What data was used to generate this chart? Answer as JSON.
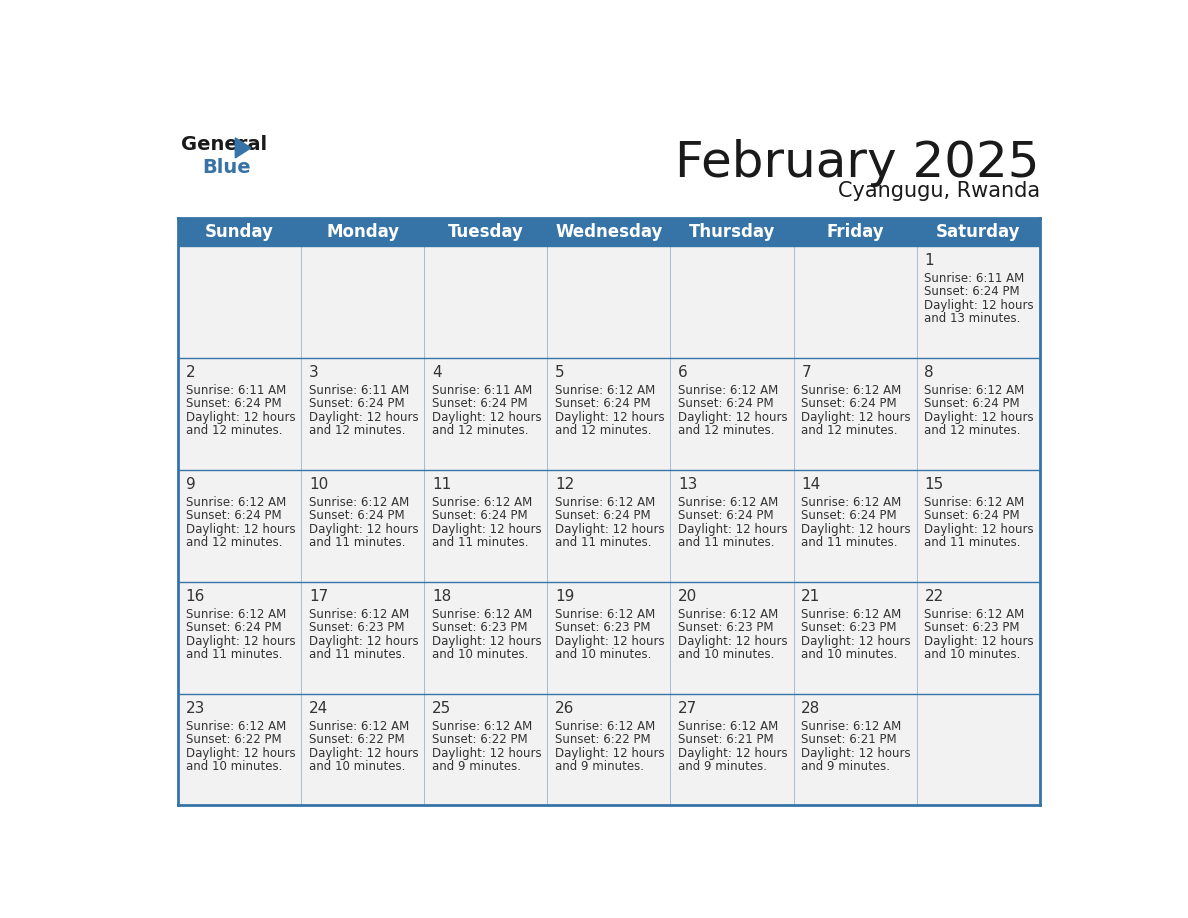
{
  "title": "February 2025",
  "subtitle": "Cyangugu, Rwanda",
  "header_bg": "#3674a8",
  "header_text_color": "#ffffff",
  "cell_bg": "#f2f2f2",
  "border_color": "#3674a8",
  "day_headers": [
    "Sunday",
    "Monday",
    "Tuesday",
    "Wednesday",
    "Thursday",
    "Friday",
    "Saturday"
  ],
  "days": [
    {
      "day": 1,
      "col": 6,
      "row": 0,
      "sunrise": "6:11 AM",
      "sunset": "6:24 PM",
      "daylight_hours": 12,
      "daylight_minutes": 13
    },
    {
      "day": 2,
      "col": 0,
      "row": 1,
      "sunrise": "6:11 AM",
      "sunset": "6:24 PM",
      "daylight_hours": 12,
      "daylight_minutes": 12
    },
    {
      "day": 3,
      "col": 1,
      "row": 1,
      "sunrise": "6:11 AM",
      "sunset": "6:24 PM",
      "daylight_hours": 12,
      "daylight_minutes": 12
    },
    {
      "day": 4,
      "col": 2,
      "row": 1,
      "sunrise": "6:11 AM",
      "sunset": "6:24 PM",
      "daylight_hours": 12,
      "daylight_minutes": 12
    },
    {
      "day": 5,
      "col": 3,
      "row": 1,
      "sunrise": "6:12 AM",
      "sunset": "6:24 PM",
      "daylight_hours": 12,
      "daylight_minutes": 12
    },
    {
      "day": 6,
      "col": 4,
      "row": 1,
      "sunrise": "6:12 AM",
      "sunset": "6:24 PM",
      "daylight_hours": 12,
      "daylight_minutes": 12
    },
    {
      "day": 7,
      "col": 5,
      "row": 1,
      "sunrise": "6:12 AM",
      "sunset": "6:24 PM",
      "daylight_hours": 12,
      "daylight_minutes": 12
    },
    {
      "day": 8,
      "col": 6,
      "row": 1,
      "sunrise": "6:12 AM",
      "sunset": "6:24 PM",
      "daylight_hours": 12,
      "daylight_minutes": 12
    },
    {
      "day": 9,
      "col": 0,
      "row": 2,
      "sunrise": "6:12 AM",
      "sunset": "6:24 PM",
      "daylight_hours": 12,
      "daylight_minutes": 12
    },
    {
      "day": 10,
      "col": 1,
      "row": 2,
      "sunrise": "6:12 AM",
      "sunset": "6:24 PM",
      "daylight_hours": 12,
      "daylight_minutes": 11
    },
    {
      "day": 11,
      "col": 2,
      "row": 2,
      "sunrise": "6:12 AM",
      "sunset": "6:24 PM",
      "daylight_hours": 12,
      "daylight_minutes": 11
    },
    {
      "day": 12,
      "col": 3,
      "row": 2,
      "sunrise": "6:12 AM",
      "sunset": "6:24 PM",
      "daylight_hours": 12,
      "daylight_minutes": 11
    },
    {
      "day": 13,
      "col": 4,
      "row": 2,
      "sunrise": "6:12 AM",
      "sunset": "6:24 PM",
      "daylight_hours": 12,
      "daylight_minutes": 11
    },
    {
      "day": 14,
      "col": 5,
      "row": 2,
      "sunrise": "6:12 AM",
      "sunset": "6:24 PM",
      "daylight_hours": 12,
      "daylight_minutes": 11
    },
    {
      "day": 15,
      "col": 6,
      "row": 2,
      "sunrise": "6:12 AM",
      "sunset": "6:24 PM",
      "daylight_hours": 12,
      "daylight_minutes": 11
    },
    {
      "day": 16,
      "col": 0,
      "row": 3,
      "sunrise": "6:12 AM",
      "sunset": "6:24 PM",
      "daylight_hours": 12,
      "daylight_minutes": 11
    },
    {
      "day": 17,
      "col": 1,
      "row": 3,
      "sunrise": "6:12 AM",
      "sunset": "6:23 PM",
      "daylight_hours": 12,
      "daylight_minutes": 11
    },
    {
      "day": 18,
      "col": 2,
      "row": 3,
      "sunrise": "6:12 AM",
      "sunset": "6:23 PM",
      "daylight_hours": 12,
      "daylight_minutes": 10
    },
    {
      "day": 19,
      "col": 3,
      "row": 3,
      "sunrise": "6:12 AM",
      "sunset": "6:23 PM",
      "daylight_hours": 12,
      "daylight_minutes": 10
    },
    {
      "day": 20,
      "col": 4,
      "row": 3,
      "sunrise": "6:12 AM",
      "sunset": "6:23 PM",
      "daylight_hours": 12,
      "daylight_minutes": 10
    },
    {
      "day": 21,
      "col": 5,
      "row": 3,
      "sunrise": "6:12 AM",
      "sunset": "6:23 PM",
      "daylight_hours": 12,
      "daylight_minutes": 10
    },
    {
      "day": 22,
      "col": 6,
      "row": 3,
      "sunrise": "6:12 AM",
      "sunset": "6:23 PM",
      "daylight_hours": 12,
      "daylight_minutes": 10
    },
    {
      "day": 23,
      "col": 0,
      "row": 4,
      "sunrise": "6:12 AM",
      "sunset": "6:22 PM",
      "daylight_hours": 12,
      "daylight_minutes": 10
    },
    {
      "day": 24,
      "col": 1,
      "row": 4,
      "sunrise": "6:12 AM",
      "sunset": "6:22 PM",
      "daylight_hours": 12,
      "daylight_minutes": 10
    },
    {
      "day": 25,
      "col": 2,
      "row": 4,
      "sunrise": "6:12 AM",
      "sunset": "6:22 PM",
      "daylight_hours": 12,
      "daylight_minutes": 9
    },
    {
      "day": 26,
      "col": 3,
      "row": 4,
      "sunrise": "6:12 AM",
      "sunset": "6:22 PM",
      "daylight_hours": 12,
      "daylight_minutes": 9
    },
    {
      "day": 27,
      "col": 4,
      "row": 4,
      "sunrise": "6:12 AM",
      "sunset": "6:21 PM",
      "daylight_hours": 12,
      "daylight_minutes": 9
    },
    {
      "day": 28,
      "col": 5,
      "row": 4,
      "sunrise": "6:12 AM",
      "sunset": "6:21 PM",
      "daylight_hours": 12,
      "daylight_minutes": 9
    }
  ],
  "num_rows": 5,
  "num_cols": 7,
  "text_color_dark": "#1a1a1a",
  "text_color_cell": "#333333",
  "grid_line_color": "#3674a8",
  "title_fontsize": 36,
  "subtitle_fontsize": 15,
  "header_fontsize": 12,
  "day_num_fontsize": 11,
  "info_fontsize": 8.5
}
